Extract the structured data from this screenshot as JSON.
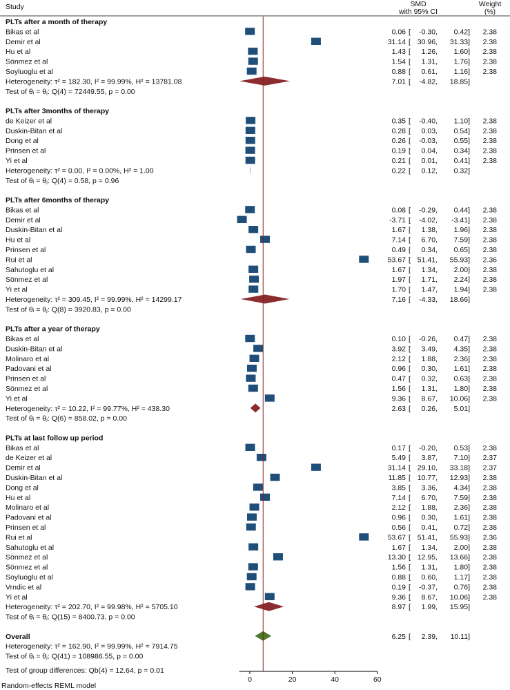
{
  "chart_data": {
    "type": "forest",
    "header": {
      "study": "Study",
      "smd_line1": "SMD",
      "smd_line2": "with 95% CI",
      "weight_line1": "Weight",
      "weight_line2": "(%)"
    },
    "xaxis": {
      "min": -5,
      "max": 60,
      "ticks": [
        0,
        20,
        40,
        60
      ],
      "tick_labels": [
        "0",
        "20",
        "40",
        "60"
      ]
    },
    "overall_line": 6.25,
    "marker_color": "#1f4e79",
    "subgroup_diamond_color": "#8b2c2f",
    "overall_diamond_color": "#4a7a2a",
    "ref_line_color": "#8b1a1a",
    "groups": [
      {
        "title": "PLTs after  a month of therapy",
        "studies": [
          {
            "name": "Bikas et al",
            "smd": 0.06,
            "lo": -0.3,
            "hi": 0.42,
            "ci": "0.06 [  -0.30,    0.42]",
            "weight": "2.38"
          },
          {
            "name": "Demir et al",
            "smd": 31.14,
            "lo": 30.96,
            "hi": 31.33,
            "ci": "31.14 [  30.96,   31.33]",
            "weight": "2.38"
          },
          {
            "name": "Hu et al",
            "smd": 1.43,
            "lo": 1.26,
            "hi": 1.6,
            "ci": "1.43 [    1.26,    1.60]",
            "weight": "2.38"
          },
          {
            "name": "Sönmez et al",
            "smd": 1.54,
            "lo": 1.31,
            "hi": 1.76,
            "ci": "1.54 [    1.31,    1.76]",
            "weight": "2.38"
          },
          {
            "name": "Soyluoglu et al",
            "smd": 0.88,
            "lo": 0.61,
            "hi": 1.16,
            "ci": "0.88 [    0.61,    1.16]",
            "weight": "2.38"
          }
        ],
        "heterogeneity": "Heterogeneity: τ² = 182.30, I² = 99.99%, H² = 13781.08",
        "pooled": {
          "smd": 7.01,
          "lo": -4.82,
          "hi": 18.85,
          "ci": "7.01 [  -4.82,   18.85]"
        },
        "test": "Test of θᵢ = θⱼ: Q(4) = 72449.55, p = 0.00"
      },
      {
        "title": "PLTs after 3months of therapy",
        "studies": [
          {
            "name": "de Keizer et al",
            "smd": 0.35,
            "lo": -0.4,
            "hi": 1.1,
            "ci": "0.35 [  -0.40,    1.10]",
            "weight": "2.38"
          },
          {
            "name": "Duskin-Bitan et al",
            "smd": 0.28,
            "lo": 0.03,
            "hi": 0.54,
            "ci": "0.28 [    0.03,    0.54]",
            "weight": "2.38"
          },
          {
            "name": "Dong et al",
            "smd": 0.26,
            "lo": -0.03,
            "hi": 0.55,
            "ci": "0.26 [  -0.03,    0.55]",
            "weight": "2.38"
          },
          {
            "name": "Prinsen et al",
            "smd": 0.19,
            "lo": 0.04,
            "hi": 0.34,
            "ci": "0.19 [    0.04,    0.34]",
            "weight": "2.38"
          },
          {
            "name": "Yi et al",
            "smd": 0.21,
            "lo": 0.01,
            "hi": 0.41,
            "ci": "0.21 [    0.01,    0.41]",
            "weight": "2.38"
          }
        ],
        "heterogeneity": "Heterogeneity: τ² = 0.00, I² = 0.00%, H² = 1.00",
        "pooled": {
          "smd": 0.22,
          "lo": 0.12,
          "hi": 0.32,
          "ci": "0.22 [    0.12,    0.32]"
        },
        "test": "Test of θᵢ = θⱼ: Q(4) = 0.58, p = 0.96"
      },
      {
        "title": "PLTs after 6months of therapy",
        "studies": [
          {
            "name": "Bikas et al",
            "smd": 0.08,
            "lo": -0.29,
            "hi": 0.44,
            "ci": "0.08 [  -0.29,    0.44]",
            "weight": "2.38"
          },
          {
            "name": "Demir et al",
            "smd": -3.71,
            "lo": -4.02,
            "hi": -3.41,
            "ci": "-3.71 [  -4.02,   -3.41]",
            "weight": "2.38"
          },
          {
            "name": "Duskin-Bitan et al",
            "smd": 1.67,
            "lo": 1.38,
            "hi": 1.96,
            "ci": "1.67 [    1.38,    1.96]",
            "weight": "2.38"
          },
          {
            "name": "Hu et al",
            "smd": 7.14,
            "lo": 6.7,
            "hi": 7.59,
            "ci": "7.14 [    6.70,    7.59]",
            "weight": "2.38"
          },
          {
            "name": "Prinsen et al",
            "smd": 0.49,
            "lo": 0.34,
            "hi": 0.65,
            "ci": "0.49 [    0.34,    0.65]",
            "weight": "2.38"
          },
          {
            "name": "Rui et al",
            "smd": 53.67,
            "lo": 51.41,
            "hi": 55.93,
            "ci": "53.67 [  51.41,   55.93]",
            "weight": "2.36"
          },
          {
            "name": "Sahutoglu et al",
            "smd": 1.67,
            "lo": 1.34,
            "hi": 2.0,
            "ci": "1.67 [    1.34,    2.00]",
            "weight": "2.38"
          },
          {
            "name": "Sönmez et al",
            "smd": 1.97,
            "lo": 1.71,
            "hi": 2.24,
            "ci": "1.97 [    1.71,    2.24]",
            "weight": "2.38"
          },
          {
            "name": "Yi et al",
            "smd": 1.7,
            "lo": 1.47,
            "hi": 1.94,
            "ci": "1.70 [    1.47,    1.94]",
            "weight": "2.38"
          }
        ],
        "heterogeneity": "Heterogeneity: τ² = 309.45, I² = 99.99%, H² = 14299.17",
        "pooled": {
          "smd": 7.16,
          "lo": -4.33,
          "hi": 18.66,
          "ci": "7.16 [  -4.33,   18.66]"
        },
        "test": "Test of θᵢ = θⱼ: Q(8) = 3920.83, p = 0.00"
      },
      {
        "title": "PLTs after a year of therapy",
        "studies": [
          {
            "name": "Bikas et al",
            "smd": 0.1,
            "lo": -0.26,
            "hi": 0.47,
            "ci": "0.10 [  -0.26,    0.47]",
            "weight": "2.38"
          },
          {
            "name": "Duskin-Bitan et al",
            "smd": 3.92,
            "lo": 3.49,
            "hi": 4.35,
            "ci": "3.92 [    3.49,    4.35]",
            "weight": "2.38"
          },
          {
            "name": "Molinaro et al",
            "smd": 2.12,
            "lo": 1.88,
            "hi": 2.36,
            "ci": "2.12 [    1.88,    2.36]",
            "weight": "2.38"
          },
          {
            "name": "Padovani et al",
            "smd": 0.96,
            "lo": 0.3,
            "hi": 1.61,
            "ci": "0.96 [    0.30,    1.61]",
            "weight": "2.38"
          },
          {
            "name": "Prinsen et al",
            "smd": 0.47,
            "lo": 0.32,
            "hi": 0.63,
            "ci": "0.47 [    0.32,    0.63]",
            "weight": "2.38"
          },
          {
            "name": "Sönmez et al",
            "smd": 1.56,
            "lo": 1.31,
            "hi": 1.8,
            "ci": "1.56 [    1.31,    1.80]",
            "weight": "2.38"
          },
          {
            "name": "Yi et al",
            "smd": 9.36,
            "lo": 8.67,
            "hi": 10.06,
            "ci": "9.36 [    8.67,   10.06]",
            "weight": "2.38"
          }
        ],
        "heterogeneity": "Heterogeneity: τ² = 10.22, I² = 99.77%, H² = 438.30",
        "pooled": {
          "smd": 2.63,
          "lo": 0.26,
          "hi": 5.01,
          "ci": "2.63 [    0.26,    5.01]"
        },
        "test": "Test of θᵢ = θⱼ: Q(6) = 858.02, p = 0.00"
      },
      {
        "title": "PLTs at last follow up period",
        "studies": [
          {
            "name": "Bikas et al",
            "smd": 0.17,
            "lo": -0.2,
            "hi": 0.53,
            "ci": "0.17 [  -0.20,    0.53]",
            "weight": "2.38"
          },
          {
            "name": "de Keizer et al",
            "smd": 5.49,
            "lo": 3.87,
            "hi": 7.1,
            "ci": "5.49 [    3.87,    7.10]",
            "weight": "2.37"
          },
          {
            "name": "Demir et al",
            "smd": 31.14,
            "lo": 29.1,
            "hi": 33.18,
            "ci": "31.14 [  29.10,   33.18]",
            "weight": "2.37"
          },
          {
            "name": "Duskin-Bitan et al",
            "smd": 11.85,
            "lo": 10.77,
            "hi": 12.93,
            "ci": "11.85 [  10.77,   12.93]",
            "weight": "2.38"
          },
          {
            "name": "Dong et al",
            "smd": 3.85,
            "lo": 3.36,
            "hi": 4.34,
            "ci": "3.85 [    3.36,    4.34]",
            "weight": "2.38"
          },
          {
            "name": "Hu et al",
            "smd": 7.14,
            "lo": 6.7,
            "hi": 7.59,
            "ci": "7.14 [    6.70,    7.59]",
            "weight": "2.38"
          },
          {
            "name": "Molinaro et al",
            "smd": 2.12,
            "lo": 1.88,
            "hi": 2.36,
            "ci": "2.12 [    1.88,    2.36]",
            "weight": "2.38"
          },
          {
            "name": "Padovani et al",
            "smd": 0.96,
            "lo": 0.3,
            "hi": 1.61,
            "ci": "0.96 [    0.30,    1.61]",
            "weight": "2.38"
          },
          {
            "name": "Prinsen et al",
            "smd": 0.56,
            "lo": 0.41,
            "hi": 0.72,
            "ci": "0.56 [    0.41,    0.72]",
            "weight": "2.38"
          },
          {
            "name": "Rui et al",
            "smd": 53.67,
            "lo": 51.41,
            "hi": 55.93,
            "ci": "53.67 [  51.41,   55.93]",
            "weight": "2.36"
          },
          {
            "name": "Sahutoglu et al",
            "smd": 1.67,
            "lo": 1.34,
            "hi": 2.0,
            "ci": "1.67 [    1.34,    2.00]",
            "weight": "2.38"
          },
          {
            "name": "Sönmez et al",
            "smd": 13.3,
            "lo": 12.95,
            "hi": 13.66,
            "ci": "13.30 [  12.95,   13.66]",
            "weight": "2.38"
          },
          {
            "name": "Sönmez et al",
            "smd": 1.56,
            "lo": 1.31,
            "hi": 1.8,
            "ci": "1.56 [    1.31,    1.80]",
            "weight": "2.38"
          },
          {
            "name": "Soyluoglu et al",
            "smd": 0.88,
            "lo": 0.6,
            "hi": 1.17,
            "ci": "0.88 [    0.60,    1.17]",
            "weight": "2.38"
          },
          {
            "name": "Vrndic et al",
            "smd": 0.19,
            "lo": -0.37,
            "hi": 0.76,
            "ci": "0.19 [  -0.37,    0.76]",
            "weight": "2.38"
          },
          {
            "name": "Yi et al",
            "smd": 9.36,
            "lo": 8.67,
            "hi": 10.06,
            "ci": "9.36 [    8.67,   10.06]",
            "weight": "2.38"
          }
        ],
        "heterogeneity": "Heterogeneity: τ² = 202.70, I² = 99.98%, H² = 5705.10",
        "pooled": {
          "smd": 8.97,
          "lo": 1.99,
          "hi": 15.95,
          "ci": "8.97 [    1.99,   15.95]"
        },
        "test": "Test of θᵢ = θⱼ: Q(15) = 8400.73, p = 0.00"
      }
    ],
    "overall": {
      "title": "Overall",
      "smd": 6.25,
      "lo": 2.39,
      "hi": 10.11,
      "ci": "6.25 [    2.39,   10.11]",
      "heterogeneity": "Heterogeneity: τ² = 162.90, I² = 99.99%, H² = 7914.75",
      "test": "Test of θᵢ = θⱼ: Q(41) = 108986.55, p = 0.00",
      "group_test": "Test of group differences: Qb(4) = 12.64, p = 0.01"
    },
    "footer": "Random-effects REML model"
  }
}
